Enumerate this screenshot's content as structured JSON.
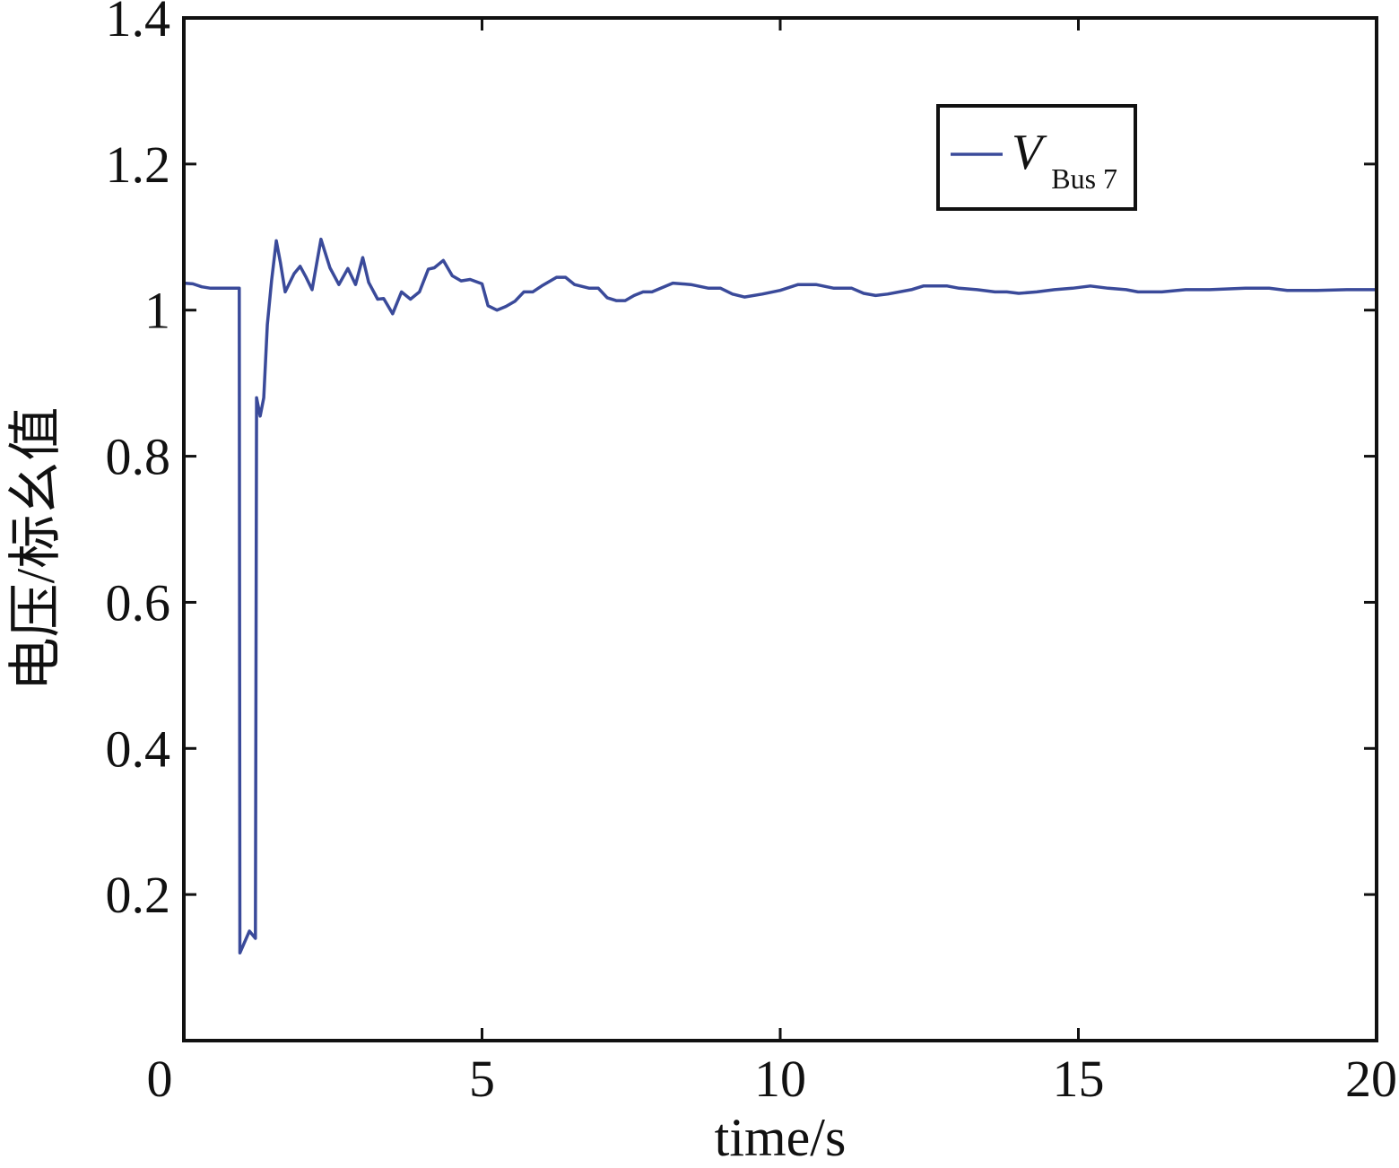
{
  "chart_data": {
    "type": "line",
    "xlabel": "time/s",
    "ylabel": "电压/标幺值",
    "xlim": [
      0,
      20
    ],
    "ylim": [
      0,
      1.4
    ],
    "x_ticks": [
      "0",
      "5",
      "10",
      "15",
      "20"
    ],
    "y_ticks": [
      "0.2",
      "0.4",
      "0.6",
      "0.8",
      "1",
      "1.2",
      "1.4"
    ],
    "grid": false,
    "legend_position": "top-right",
    "series": [
      {
        "name": "V",
        "name_subscript": "Bus 7",
        "color": "#3a4a9a",
        "points": [
          [
            0.0,
            1.037
          ],
          [
            0.15,
            1.036
          ],
          [
            0.3,
            1.032
          ],
          [
            0.45,
            1.03
          ],
          [
            0.6,
            1.03
          ],
          [
            0.8,
            1.03
          ],
          [
            0.93,
            1.03
          ],
          [
            0.94,
            0.12
          ],
          [
            1.1,
            0.15
          ],
          [
            1.2,
            0.14
          ],
          [
            1.22,
            0.88
          ],
          [
            1.28,
            0.855
          ],
          [
            1.34,
            0.88
          ],
          [
            1.4,
            0.98
          ],
          [
            1.47,
            1.04
          ],
          [
            1.55,
            1.095
          ],
          [
            1.62,
            1.065
          ],
          [
            1.7,
            1.025
          ],
          [
            1.85,
            1.05
          ],
          [
            1.95,
            1.06
          ],
          [
            2.05,
            1.045
          ],
          [
            2.15,
            1.028
          ],
          [
            2.3,
            1.097
          ],
          [
            2.45,
            1.058
          ],
          [
            2.6,
            1.035
          ],
          [
            2.75,
            1.057
          ],
          [
            2.88,
            1.035
          ],
          [
            3.0,
            1.072
          ],
          [
            3.1,
            1.038
          ],
          [
            3.25,
            1.015
          ],
          [
            3.35,
            1.016
          ],
          [
            3.5,
            0.995
          ],
          [
            3.65,
            1.025
          ],
          [
            3.8,
            1.015
          ],
          [
            3.95,
            1.025
          ],
          [
            4.1,
            1.056
          ],
          [
            4.2,
            1.058
          ],
          [
            4.35,
            1.068
          ],
          [
            4.5,
            1.047
          ],
          [
            4.65,
            1.04
          ],
          [
            4.8,
            1.042
          ],
          [
            5.0,
            1.036
          ],
          [
            5.1,
            1.006
          ],
          [
            5.25,
            1.0
          ],
          [
            5.4,
            1.005
          ],
          [
            5.55,
            1.012
          ],
          [
            5.7,
            1.025
          ],
          [
            5.85,
            1.025
          ],
          [
            6.0,
            1.033
          ],
          [
            6.25,
            1.045
          ],
          [
            6.4,
            1.045
          ],
          [
            6.55,
            1.035
          ],
          [
            6.8,
            1.03
          ],
          [
            6.95,
            1.03
          ],
          [
            7.1,
            1.017
          ],
          [
            7.25,
            1.013
          ],
          [
            7.4,
            1.013
          ],
          [
            7.55,
            1.02
          ],
          [
            7.7,
            1.025
          ],
          [
            7.85,
            1.025
          ],
          [
            8.2,
            1.037
          ],
          [
            8.5,
            1.035
          ],
          [
            8.8,
            1.03
          ],
          [
            9.0,
            1.03
          ],
          [
            9.2,
            1.022
          ],
          [
            9.4,
            1.018
          ],
          [
            9.7,
            1.022
          ],
          [
            10.0,
            1.027
          ],
          [
            10.3,
            1.035
          ],
          [
            10.6,
            1.035
          ],
          [
            10.9,
            1.03
          ],
          [
            11.2,
            1.03
          ],
          [
            11.4,
            1.023
          ],
          [
            11.6,
            1.02
          ],
          [
            11.8,
            1.022
          ],
          [
            12.2,
            1.028
          ],
          [
            12.4,
            1.033
          ],
          [
            12.8,
            1.033
          ],
          [
            13.0,
            1.03
          ],
          [
            13.3,
            1.028
          ],
          [
            13.6,
            1.025
          ],
          [
            13.8,
            1.025
          ],
          [
            14.0,
            1.023
          ],
          [
            14.3,
            1.025
          ],
          [
            14.6,
            1.028
          ],
          [
            14.9,
            1.03
          ],
          [
            15.2,
            1.033
          ],
          [
            15.5,
            1.03
          ],
          [
            15.8,
            1.028
          ],
          [
            16.0,
            1.025
          ],
          [
            16.4,
            1.025
          ],
          [
            16.8,
            1.028
          ],
          [
            17.2,
            1.028
          ],
          [
            17.8,
            1.03
          ],
          [
            18.2,
            1.03
          ],
          [
            18.5,
            1.027
          ],
          [
            19.0,
            1.027
          ],
          [
            19.5,
            1.028
          ],
          [
            20.0,
            1.028
          ]
        ]
      }
    ]
  }
}
